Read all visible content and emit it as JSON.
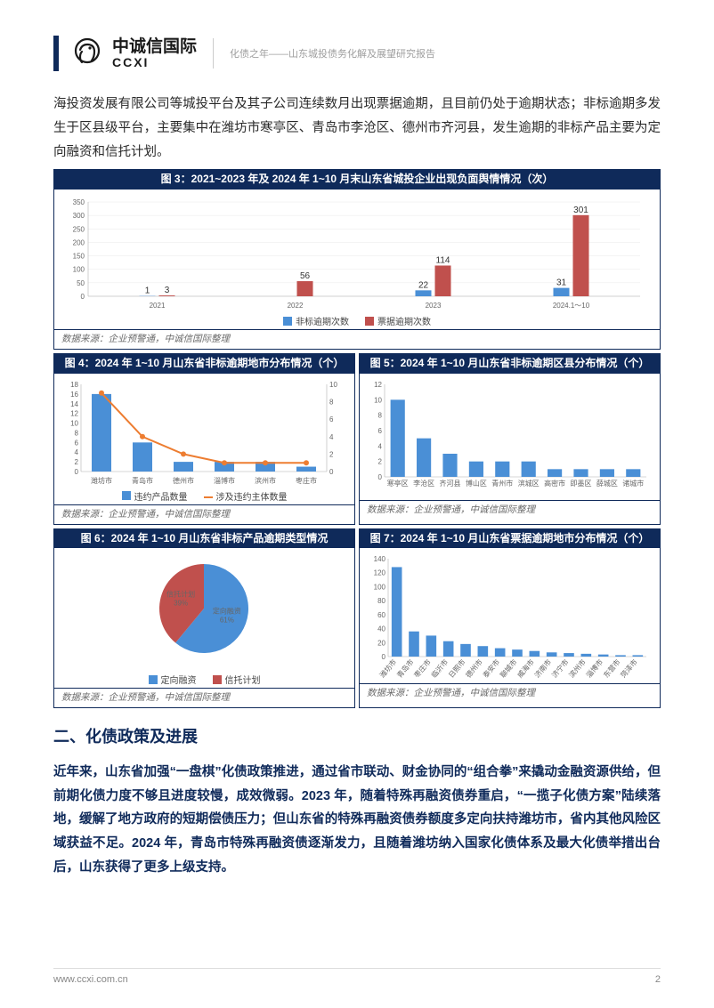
{
  "header": {
    "logo_cn": "中诚信国际",
    "logo_en": "CCXI",
    "title": "化债之年——山东城投债务化解及展望研究报告"
  },
  "para_intro": "海投资发展有限公司等城投平台及其子公司连续数月出现票据逾期，且目前仍处于逾期状态；非标逾期多发生于区县级平台，主要集中在潍坊市寒亭区、青岛市李沧区、德州市齐河县，发生逾期的非标产品主要为定向融资和信托计划。",
  "fig3": {
    "title": "图 3：2021~2023 年及 2024 年 1~10 月末山东省城投企业出现负面舆情情况（次）",
    "type": "grouped-bar",
    "categories": [
      "2021",
      "2022",
      "2023",
      "2024.1～10"
    ],
    "series": [
      {
        "name": "非标逾期次数",
        "color": "#4a8fd6",
        "values": [
          1,
          0,
          22,
          31
        ]
      },
      {
        "name": "票据逾期次数",
        "color": "#c0504d",
        "values": [
          3,
          56,
          114,
          301
        ]
      }
    ],
    "ylim": [
      0,
      350
    ],
    "ytick_step": 50,
    "title_fontsize": 12,
    "label_fontsize": 8,
    "background_color": "#ffffff",
    "grid_color": "#e8e8e8",
    "source": "数据来源：企业预警通，中诚信国际整理"
  },
  "fig4": {
    "title": "图 4：2024 年 1~10 月山东省非标逾期地市分布情况（个）",
    "type": "bar+line",
    "categories": [
      "潍坊市",
      "青岛市",
      "德州市",
      "淄博市",
      "滨州市",
      "枣庄市"
    ],
    "bars": {
      "name": "违约产品数量",
      "color": "#4a8fd6",
      "values": [
        16,
        6,
        2,
        2,
        2,
        1
      ]
    },
    "line": {
      "name": "涉及违约主体数量",
      "color": "#ed7d31",
      "values": [
        9,
        4,
        2,
        1,
        1,
        1
      ]
    },
    "ylim_left": [
      0,
      18
    ],
    "ytick_left": 2,
    "ylim_right": [
      0,
      10
    ],
    "ytick_right": 2,
    "source": "数据来源：企业预警通，中诚信国际整理"
  },
  "fig5": {
    "title": "图 5：2024 年 1~10 月山东省非标逾期区县分布情况（个）",
    "type": "bar",
    "categories": [
      "寒亭区",
      "李沧区",
      "齐河县",
      "博山区",
      "青州市",
      "滨城区",
      "高密市",
      "即墨区",
      "薛城区",
      "诸城市"
    ],
    "values": [
      10,
      5,
      3,
      2,
      2,
      2,
      1,
      1,
      1,
      1
    ],
    "color": "#4a8fd6",
    "ylim": [
      0,
      12
    ],
    "ytick_step": 2,
    "source": "数据来源：企业预警通，中诚信国际整理"
  },
  "fig6": {
    "title": "图 6：2024 年 1~10 月山东省非标产品逾期类型情况",
    "type": "pie",
    "slices": [
      {
        "name": "定向融资",
        "label": "定向融资\n61%",
        "value": 61,
        "color": "#4a8fd6"
      },
      {
        "name": "信托计划",
        "label": "信托计划\n39%",
        "value": 39,
        "color": "#c0504d"
      }
    ],
    "legend": [
      "定向融资",
      "信托计划"
    ],
    "source": "数据来源：企业预警通，中诚信国际整理"
  },
  "fig7": {
    "title": "图 7：2024 年 1~10 月山东省票据逾期地市分布情况（个）",
    "type": "bar",
    "categories": [
      "潍坊市",
      "青岛市",
      "枣庄市",
      "临沂市",
      "日照市",
      "德州市",
      "泰安市",
      "聊城市",
      "威海市",
      "济南市",
      "济宁市",
      "滨州市",
      "淄博市",
      "东营市",
      "菏泽市"
    ],
    "values": [
      128,
      36,
      30,
      22,
      18,
      15,
      12,
      10,
      8,
      6,
      5,
      4,
      3,
      2,
      2
    ],
    "color": "#4a8fd6",
    "ylim": [
      0,
      140
    ],
    "ytick_step": 20,
    "source": "数据来源：企业预警通，中诚信国际整理"
  },
  "section2_heading": "二、化债政策及进展",
  "para2": "近年来，山东省加强“一盘棋”化债政策推进，通过省市联动、财金协同的“组合拳”来撬动金融资源供给，但前期化债力度不够且进度较慢，成效微弱。2023 年，随着特殊再融资债券重启，“一揽子化债方案”陆续落地，缓解了地方政府的短期偿债压力；但山东省的特殊再融资债券额度多定向扶持潍坊市，省内其他风险区域获益不足。2024 年，青岛市特殊再融资债逐渐发力，且随着潍坊纳入国家化债体系及最大化债举措出台后，山东获得了更多上级支持。",
  "footer": {
    "url": "www.ccxi.com.cn",
    "page": "2"
  }
}
